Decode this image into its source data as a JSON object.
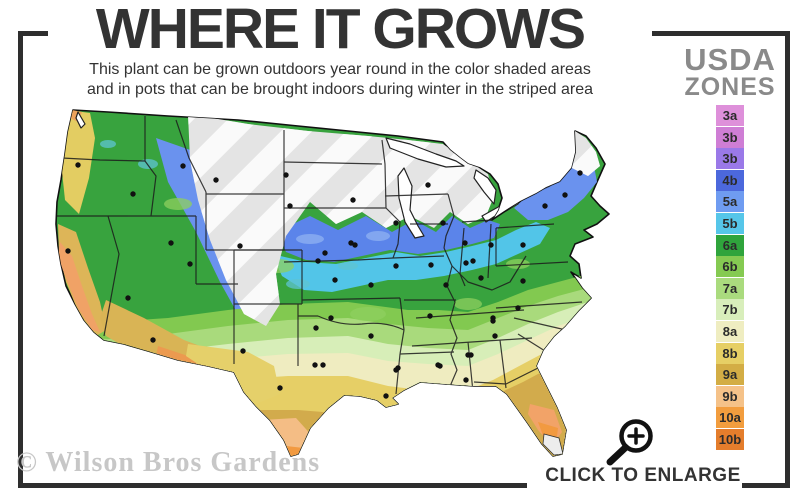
{
  "header": {
    "title": "WHERE IT GROWS",
    "subtitle_line1": "This plant can be grown outdoors year round in the color shaded areas",
    "subtitle_line2": "and in pots that can be brought indoors during winter in the striped area"
  },
  "legend": {
    "title_line1": "USDA",
    "title_line2": "ZONES",
    "zones": [
      {
        "label": "3a",
        "color": "#de90da"
      },
      {
        "label": "3b",
        "color": "#cf7ed5"
      },
      {
        "label": "3b",
        "color": "#9a79e8"
      },
      {
        "label": "4b",
        "color": "#4c68dc"
      },
      {
        "label": "5a",
        "color": "#6f9cf1"
      },
      {
        "label": "5b",
        "color": "#56c6e9"
      },
      {
        "label": "6a",
        "color": "#2fa43c"
      },
      {
        "label": "6b",
        "color": "#85ca52"
      },
      {
        "label": "7a",
        "color": "#aadb7e"
      },
      {
        "label": "7b",
        "color": "#d8eebb"
      },
      {
        "label": "8a",
        "color": "#efedc1"
      },
      {
        "label": "8b",
        "color": "#e6cf65"
      },
      {
        "label": "9a",
        "color": "#d3ad45"
      },
      {
        "label": "9b",
        "color": "#f5c289"
      },
      {
        "label": "10a",
        "color": "#f29d3e"
      },
      {
        "label": "10b",
        "color": "#e47d2c"
      }
    ]
  },
  "map": {
    "description": "USDA hardiness zone map of the continental United States",
    "striped_area_color": "#e4e4e4"
  },
  "footer": {
    "watermark": "© Wilson Bros Gardens",
    "enlarge_label": "CLICK TO ENLARGE",
    "enlarge_icon": "magnifier-plus-icon"
  }
}
